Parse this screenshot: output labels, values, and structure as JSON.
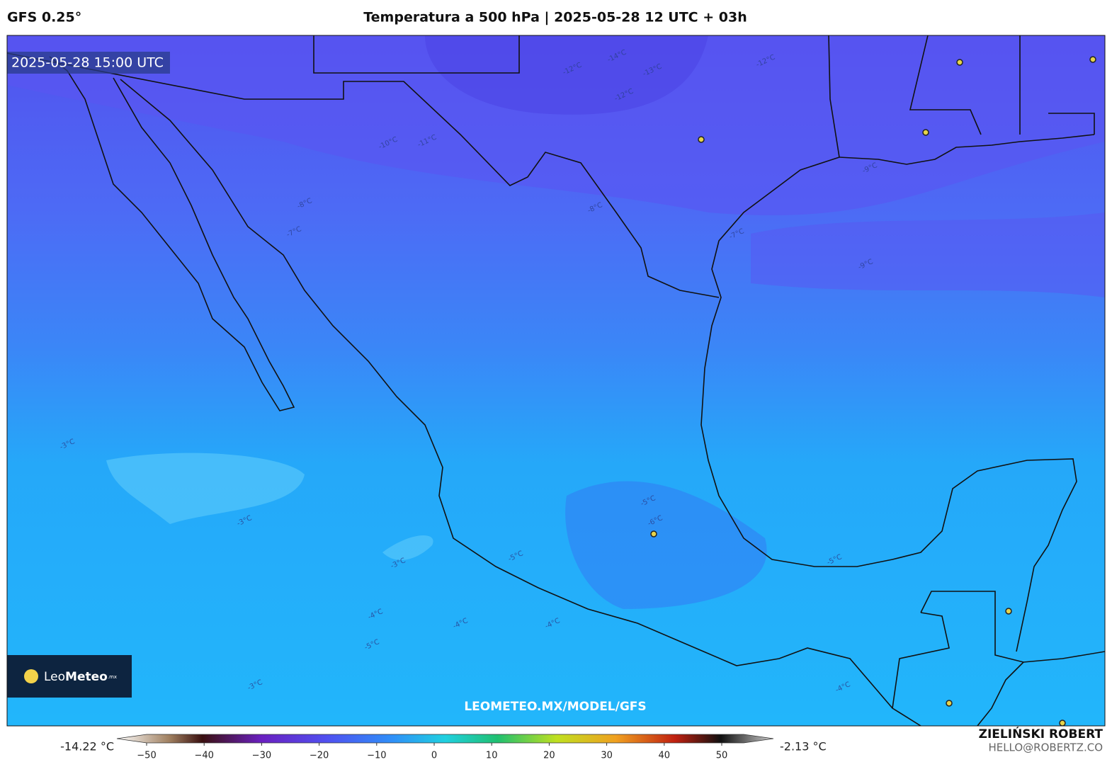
{
  "header": {
    "model": "GFS 0.25°",
    "title": "Temperatura a 500 hPa | 2025-05-28 12 UTC + 03h"
  },
  "map": {
    "timestamp": "2025-05-28 15:00 UTC",
    "watermark": "LEOMETEO.MX/MODEL/GFS",
    "contour_labels": [
      "-12°C",
      "-14°C",
      "-13°C",
      "-12°C",
      "-12°C",
      "-11°C",
      "-10°C",
      "-9°C",
      "-9°C",
      "-8°C",
      "-8°C",
      "-7°C",
      "-7°C",
      "-6°C",
      "-5°C",
      "-5°C",
      "-5°C",
      "-4°C",
      "-4°C",
      "-4°C",
      "-3°C",
      "-3°C",
      "-3°C",
      "-3°C",
      "-4°C",
      "-5°C"
    ]
  },
  "logo": {
    "prefix": "Leo",
    "name": "Meteo",
    "suffix": ".mx"
  },
  "colorbar": {
    "min_label": "-14.22 °C",
    "max_label": "-2.13 °C",
    "ticks": [
      "−50",
      "−40",
      "−30",
      "−20",
      "−10",
      "0",
      "10",
      "20",
      "30",
      "40",
      "50"
    ]
  },
  "credit": {
    "author": "ZIELIŃSKI ROBERT",
    "email": "HELLO@ROBERTZ.CO"
  }
}
